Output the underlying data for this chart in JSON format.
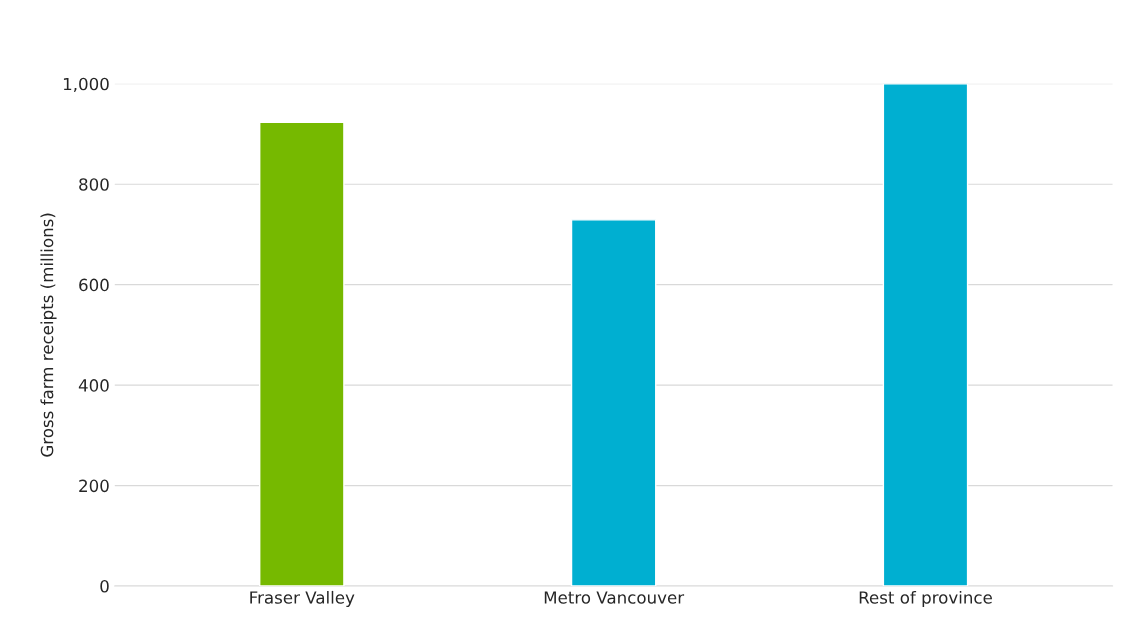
{
  "chart_data": {
    "type": "bar",
    "ylabel": "Gross farm receipts (millions)",
    "categories": [
      "Fraser Valley",
      "Metro Vancouver",
      "Rest of province"
    ],
    "values": [
      923,
      729,
      1000
    ],
    "colors": [
      "#76b900",
      "#00afd1",
      "#00afd1"
    ],
    "ylim": [
      0,
      1000
    ],
    "yticks": [
      0,
      200,
      400,
      600,
      800,
      {
        "value": 1000,
        "label": "1,000"
      }
    ],
    "grid": "y"
  }
}
